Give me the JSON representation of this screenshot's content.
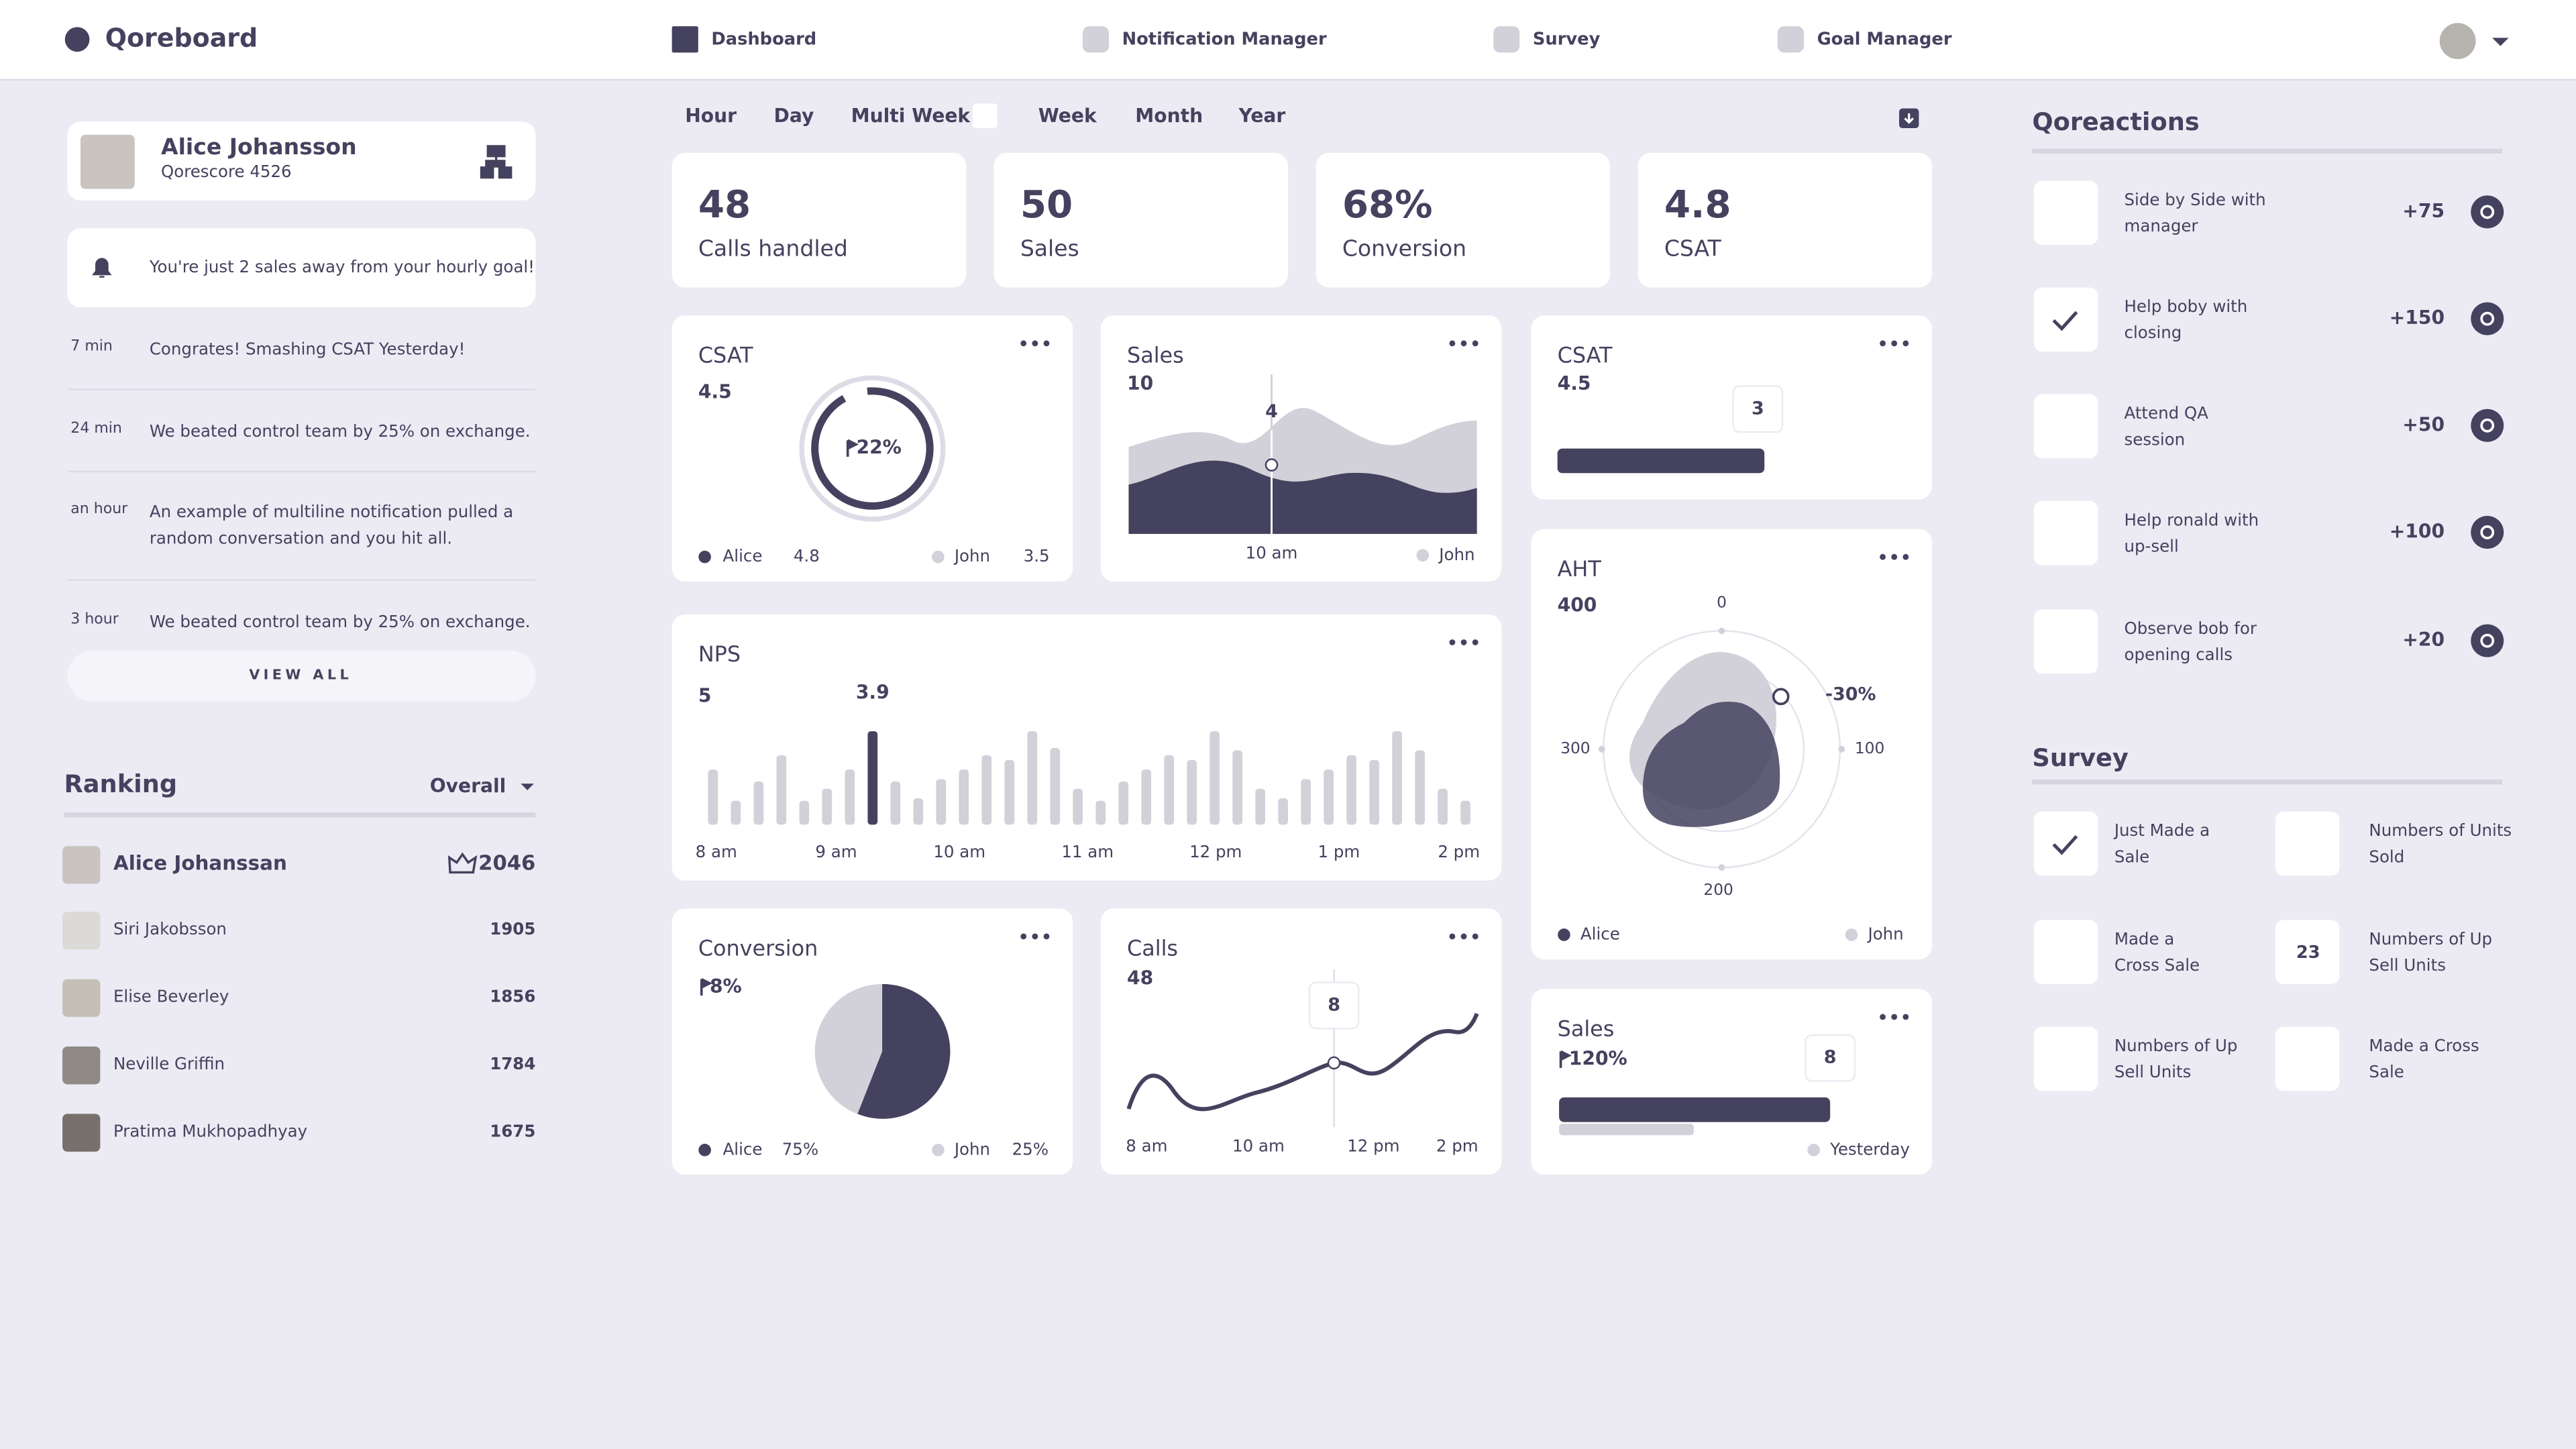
{
  "header": {
    "logo": "Qoreboard",
    "nav": [
      "Dashboard",
      "Notification Manager",
      "Survey",
      "Goal Manager"
    ]
  },
  "profile": {
    "name": "Alice Johansson",
    "score": "Qorescore  4526"
  },
  "goal_alert": "You're just 2 sales away from your hourly goal!",
  "notifications": [
    {
      "time": "7 min",
      "lines": [
        "Congrates! Smashing CSAT Yesterday!"
      ]
    },
    {
      "time": "24 min",
      "lines": [
        "We beated control team by 25% on exchange."
      ]
    },
    {
      "time": "an hour",
      "lines": [
        "An example of multiline notification pulled a",
        "random conversation and you hit all."
      ]
    },
    {
      "time": "3 hour",
      "lines": [
        "We beated control team by 25% on exchange."
      ]
    }
  ],
  "view_all": "VIEW ALL",
  "ranking": {
    "title": "Ranking",
    "filter": "Overall",
    "rows": [
      {
        "name": "Alice Johanssan",
        "score": "2046"
      },
      {
        "name": "Siri Jakobsson",
        "score": "1905"
      },
      {
        "name": "Elise Beverley",
        "score": "1856"
      },
      {
        "name": "Neville Griffin",
        "score": "1784"
      },
      {
        "name": "Pratima Mukhopadhyay",
        "score": "1675"
      }
    ]
  },
  "tabs": [
    "Hour",
    "Day",
    "Multi Week",
    "Week",
    "Month",
    "Year"
  ],
  "kpis": [
    {
      "value": "48",
      "label": "Calls handled"
    },
    {
      "value": "50",
      "label": "Sales"
    },
    {
      "value": "68%",
      "label": "Conversion"
    },
    {
      "value": "4.8",
      "label": "CSAT"
    }
  ],
  "csat": {
    "title": "CSAT",
    "value": "4.5",
    "ring": "22%",
    "legend": [
      {
        "name": "Alice",
        "value": "4.8"
      },
      {
        "name": "John",
        "value": "3.5"
      }
    ]
  },
  "sales": {
    "title": "Sales",
    "value": "10",
    "marker": "4",
    "x_label": "10 am",
    "legend": "John"
  },
  "csat_bar": {
    "title": "CSAT",
    "value": "4.5",
    "tooltip": "3"
  },
  "nps": {
    "title": "NPS",
    "ylim": [
      0,
      5
    ],
    "highlight": 7,
    "values": [
      2.3,
      1.0,
      1.8,
      2.9,
      1.0,
      1.5,
      2.3,
      3.9,
      1.8,
      1.1,
      1.9,
      2.3,
      2.9,
      2.7,
      3.9,
      3.2,
      1.5,
      1.0,
      1.8,
      2.3,
      2.9,
      2.7,
      3.9,
      3.1,
      1.5,
      1.1,
      1.9,
      2.3,
      2.9,
      2.7,
      3.9,
      3.1,
      1.5,
      1.0
    ],
    "x_labels": [
      "8 am",
      "9 am",
      "10 am",
      "11 am",
      "12 pm",
      "1 pm",
      "2 pm"
    ]
  },
  "aht": {
    "title": "AHT",
    "value": "400",
    "axis": [
      "0",
      "100",
      "200",
      "300"
    ],
    "delta": "-30%",
    "legend": [
      "Alice",
      "John"
    ]
  },
  "conversion": {
    "title": "Conversion",
    "value": "8%",
    "legend": [
      {
        "name": "Alice",
        "value": "75%"
      },
      {
        "name": "John",
        "value": "25%"
      }
    ]
  },
  "calls": {
    "title": "Calls",
    "value": "48",
    "tooltip": "8",
    "x_labels": [
      "8 am",
      "10 am",
      "12 pm",
      "2 pm"
    ]
  },
  "sales_bar": {
    "title": "Sales",
    "value": "120%",
    "tooltip": "8",
    "legend": "Yesterday"
  },
  "qoreactions": {
    "title": "Qoreactions",
    "items": [
      {
        "lines": [
          "Side by Side with",
          "manager"
        ],
        "points": "+75",
        "checked": false
      },
      {
        "lines": [
          "Help boby with",
          "closing"
        ],
        "points": "+150",
        "checked": true
      },
      {
        "lines": [
          "Attend QA",
          "session"
        ],
        "points": "+50",
        "checked": false
      },
      {
        "lines": [
          "Help ronald with",
          "up-sell"
        ],
        "points": "+100",
        "checked": false
      },
      {
        "lines": [
          "Observe bob for",
          "opening calls"
        ],
        "points": "+20",
        "checked": false
      }
    ]
  },
  "survey": {
    "title": "Survey",
    "items": [
      {
        "lines": [
          "Just Made a",
          "Sale"
        ],
        "checked": true
      },
      {
        "lines": [
          "Numbers of Units",
          "Sold"
        ],
        "checked": false
      },
      {
        "lines": [
          "Made a",
          "Cross Sale"
        ],
        "checked": false
      },
      {
        "lines": [
          "Numbers of Up",
          "Sell Units"
        ],
        "checked": false,
        "count": "23"
      },
      {
        "lines": [
          "Numbers of Up",
          "Sell Units"
        ],
        "checked": false
      },
      {
        "lines": [
          "Made a Cross",
          "Sale"
        ],
        "checked": false
      }
    ]
  }
}
